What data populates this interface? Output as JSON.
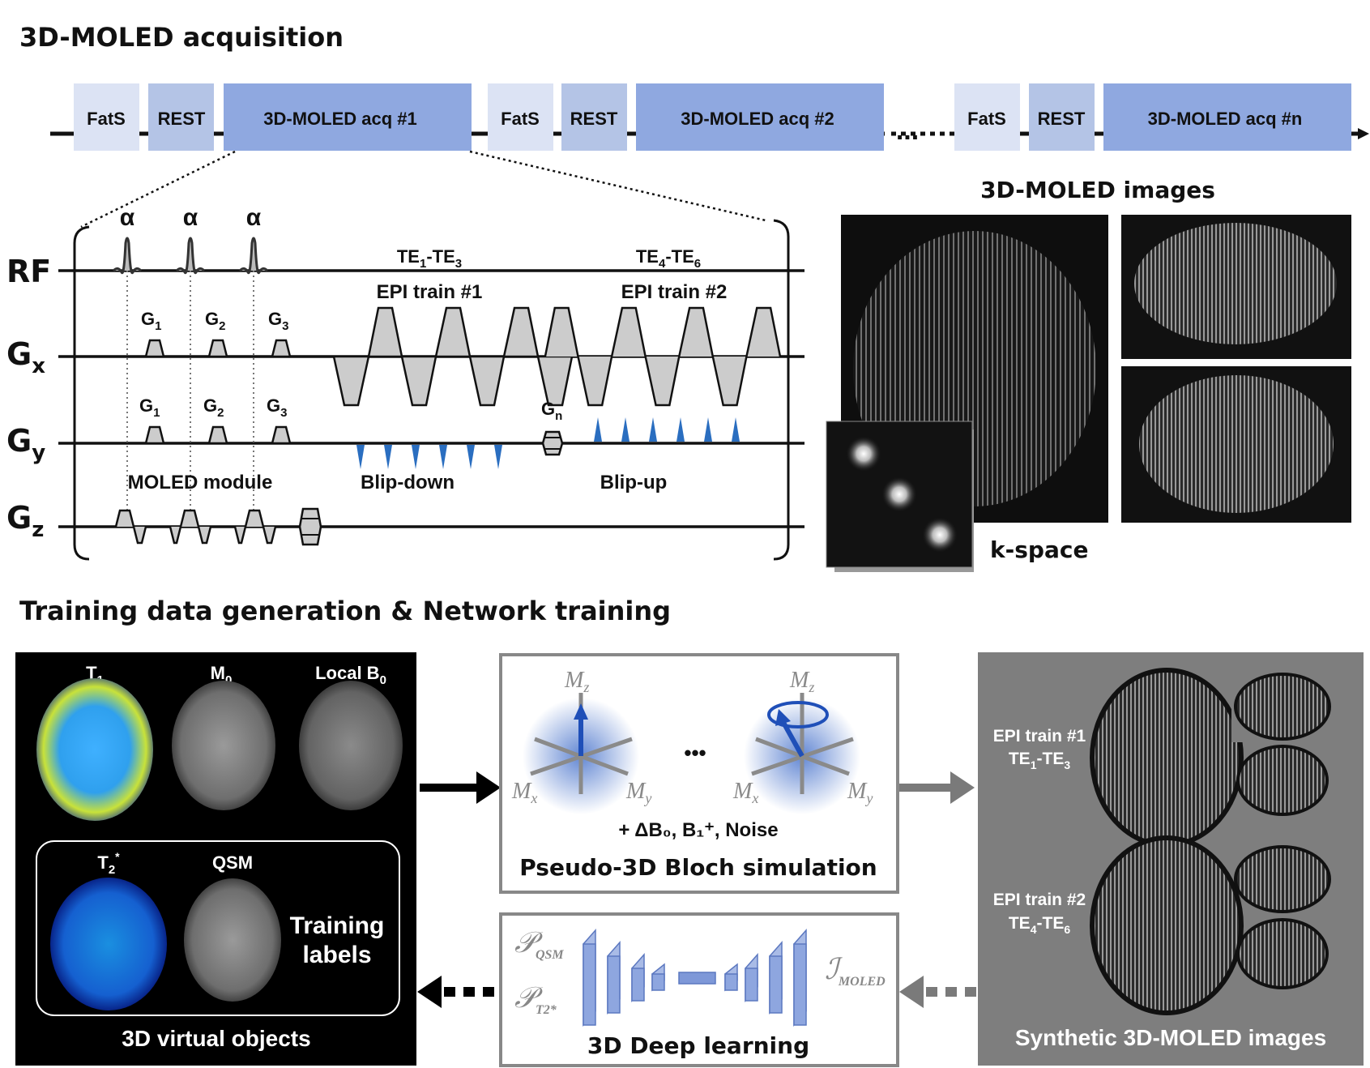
{
  "sections": {
    "acquisition_title": "3D-MOLED acquisition",
    "training_title": "Training data generation & Network training"
  },
  "timeline": {
    "blocks": [
      {
        "label": "FatS"
      },
      {
        "label": "REST"
      },
      {
        "label": "3D-MOLED acq #1"
      },
      {
        "label": "FatS"
      },
      {
        "label": "REST"
      },
      {
        "label": "3D-MOLED acq #2"
      },
      {
        "label": "FatS"
      },
      {
        "label": "REST"
      },
      {
        "label": "3D-MOLED acq #n"
      }
    ],
    "ellipsis": "...",
    "colors": {
      "fats": "#dce3f4",
      "rest": "#b4c4e6",
      "acq": "#8fa8e0"
    }
  },
  "sequence": {
    "rows": {
      "rf": "RF",
      "gx": "G",
      "gx_sub": "x",
      "gy": "G",
      "gy_sub": "y",
      "gz": "G",
      "gz_sub": "z"
    },
    "alpha": "α",
    "g_labels": [
      {
        "main": "G",
        "sub": "1"
      },
      {
        "main": "G",
        "sub": "2"
      },
      {
        "main": "G",
        "sub": "3"
      }
    ],
    "gn": {
      "main": "G",
      "sub": "n"
    },
    "te1": {
      "a": "TE",
      "a_sub": "1",
      "b": "-TE",
      "b_sub": "3"
    },
    "te2": {
      "a": "TE",
      "a_sub": "4",
      "b": "-TE",
      "b_sub": "6"
    },
    "epi1": "EPI train #1",
    "epi2": "EPI train #2",
    "moled_module": "MOLED module",
    "blip_down": "Blip-down",
    "blip_up": "Blip-up",
    "blip_color": "#2a6ec0"
  },
  "images_panel": {
    "title": "3D-MOLED images",
    "kspace": "k-space"
  },
  "virtual_objects": {
    "maps": [
      {
        "main": "T",
        "sub": "1"
      },
      {
        "main": "M",
        "sub": "0"
      },
      {
        "main": "Local B",
        "sub": "0"
      }
    ],
    "label_maps": [
      {
        "main": "T",
        "sub": "2",
        "sup": "*"
      },
      {
        "main": "QSM",
        "sub": ""
      }
    ],
    "training_labels_1": "Training",
    "training_labels_2": "labels",
    "caption": "3D virtual objects"
  },
  "bloch": {
    "axes": {
      "mz": "M",
      "mz_sub": "z",
      "mx": "M",
      "mx_sub": "x",
      "my": "M",
      "my_sub": "y"
    },
    "dots": "•••",
    "extras": "+ ΔB₀, B₁⁺, Noise",
    "caption": "Pseudo-3D Bloch simulation"
  },
  "network": {
    "p_qsm": "𝒫",
    "p_qsm_sub": "QSM",
    "p_t2": "𝒫",
    "p_t2_sub": "T2*",
    "i_moled": "ℐ",
    "i_moled_sub": "MOLED",
    "caption": "3D Deep learning"
  },
  "synthetic": {
    "row1_line1": "EPI train #1",
    "row1_line2": {
      "a": "TE",
      "a_sub": "1",
      "b": "-TE",
      "b_sub": "3"
    },
    "row2_line1": "EPI train #2",
    "row2_line2": {
      "a": "TE",
      "a_sub": "4",
      "b": "-TE",
      "b_sub": "6"
    },
    "caption": "Synthetic 3D-MOLED images"
  }
}
